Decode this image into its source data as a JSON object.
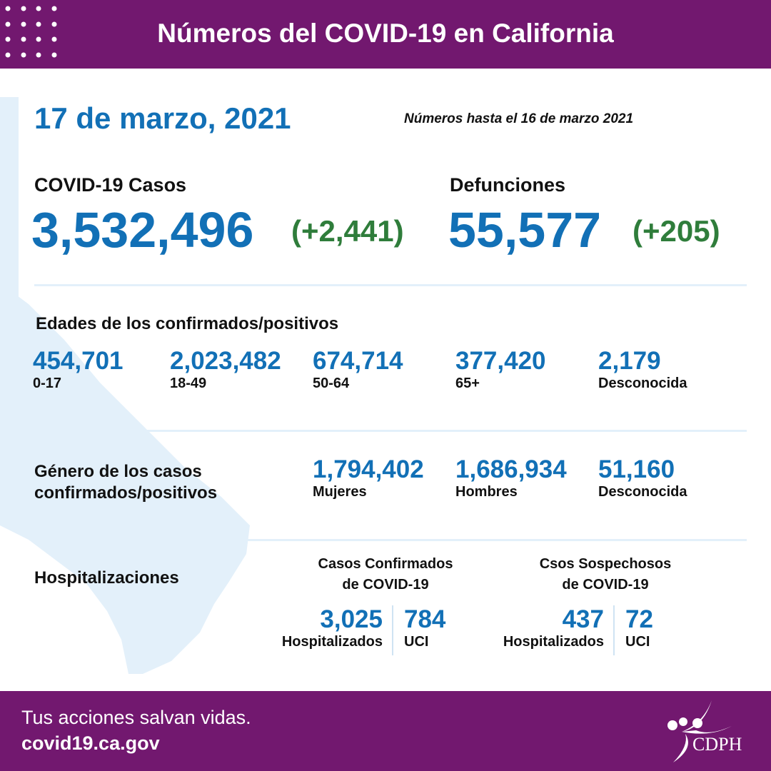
{
  "header": {
    "title": "Números del COVID-19 en California"
  },
  "date": "17 de marzo, 2021",
  "as_of": "Números hasta el 16 de marzo 2021",
  "cases": {
    "label": "COVID-19 Casos",
    "total": "3,532,496",
    "change": "(+2,441)"
  },
  "deaths": {
    "label": "Defunciones",
    "total": "55,577",
    "change": "(+205)"
  },
  "ages": {
    "title": "Edades de los confirmados/positivos",
    "items": [
      {
        "value": "454,701",
        "label": "0-17"
      },
      {
        "value": "2,023,482",
        "label": "18-49"
      },
      {
        "value": "674,714",
        "label": "50-64"
      },
      {
        "value": "377,420",
        "label": "65+"
      },
      {
        "value": "2,179",
        "label": "Desconocida"
      }
    ]
  },
  "gender": {
    "title_1": "Género de los casos",
    "title_2": "confirmados/positivos",
    "items": [
      {
        "value": "1,794,402",
        "label": "Mujeres"
      },
      {
        "value": "1,686,934",
        "label": "Hombres"
      },
      {
        "value": "51,160",
        "label": "Desconocida"
      }
    ]
  },
  "hosp": {
    "title": "Hospitalizaciones",
    "confirmed": {
      "title_1": "Casos Confirmados",
      "title_2": "de COVID-19",
      "hosp_value": "3,025",
      "hosp_label": "Hospitalizados",
      "icu_value": "784",
      "icu_label": "UCI"
    },
    "suspected": {
      "title_1": "Csos Sospechosos",
      "title_2": "de COVID-19",
      "hosp_value": "437",
      "hosp_label": "Hospitalizados",
      "icu_value": "72",
      "icu_label": "UCI"
    }
  },
  "footer": {
    "tagline": "Tus acciones salvan vidas.",
    "url": "covid19.ca.gov",
    "logo_text": "CDPH"
  },
  "colors": {
    "purple": "#72186f",
    "blue": "#1270b6",
    "green": "#2f7d3b",
    "map": "#e3f0fa"
  }
}
